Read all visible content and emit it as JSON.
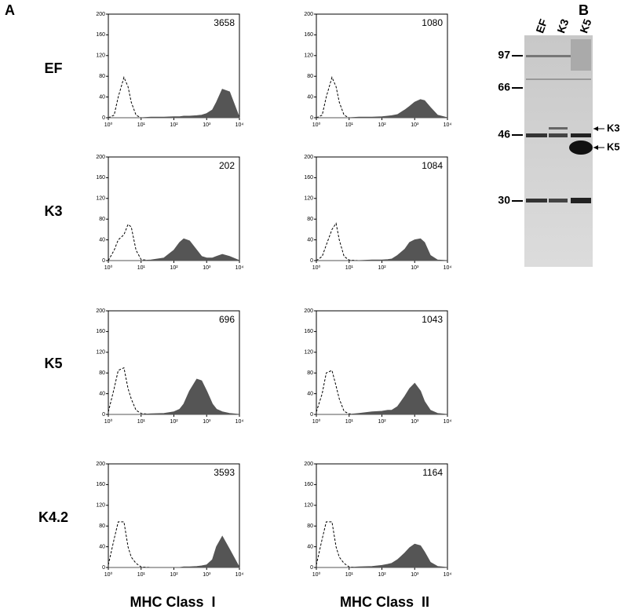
{
  "panel_labels": [
    "A",
    "B"
  ],
  "row_labels": [
    "EF",
    "K3",
    "K5",
    "K4.2"
  ],
  "column_labels": [
    "MHC Class  I",
    "MHC Class  II"
  ],
  "gel": {
    "lanes": [
      "EF",
      "K3",
      "K5"
    ],
    "markers": [
      97,
      66,
      46,
      30
    ],
    "arrows": [
      "K3",
      "K5"
    ]
  },
  "chart_data": [
    {
      "type": "area",
      "annotation": "3658",
      "xscale": "log",
      "xlim": [
        1,
        10000
      ],
      "ylim": [
        0,
        200
      ],
      "xticks": [
        {
          "value": 1,
          "label": "10⁰"
        },
        {
          "value": 10,
          "label": "10¹"
        },
        {
          "value": 100,
          "label": "10²"
        },
        {
          "value": 1000,
          "label": "10³"
        },
        {
          "value": 10000,
          "label": "10⁴"
        }
      ],
      "yticks": [
        0,
        40,
        80,
        120,
        160,
        200
      ],
      "x": [
        1,
        1.5,
        2,
        3,
        4,
        5,
        7,
        10,
        20,
        50,
        100,
        150,
        200,
        300,
        500,
        700,
        1000,
        1500,
        2000,
        3000,
        5000,
        10000
      ],
      "series": [
        {
          "style": "dashed",
          "color": "#000000",
          "values": [
            0,
            5,
            40,
            78,
            60,
            30,
            5,
            0,
            0,
            0,
            0,
            0,
            0,
            0,
            0,
            0,
            0,
            0,
            0,
            0,
            0,
            0
          ]
        },
        {
          "style": "filled",
          "color": "#555555",
          "values": [
            0,
            0,
            0,
            0,
            0,
            0,
            0,
            0,
            1,
            1,
            2,
            2,
            3,
            3,
            4,
            5,
            8,
            15,
            30,
            55,
            50,
            0
          ]
        }
      ]
    },
    {
      "type": "area",
      "annotation": "1080",
      "xscale": "log",
      "xlim": [
        1,
        10000
      ],
      "ylim": [
        0,
        200
      ],
      "xticks": [
        {
          "value": 1,
          "label": "10⁰"
        },
        {
          "value": 10,
          "label": "10¹"
        },
        {
          "value": 100,
          "label": "10²"
        },
        {
          "value": 1000,
          "label": "10³"
        },
        {
          "value": 10000,
          "label": "10⁴"
        }
      ],
      "yticks": [
        0,
        40,
        80,
        120,
        160,
        200
      ],
      "x": [
        1,
        1.5,
        2,
        3,
        4,
        5,
        7,
        10,
        20,
        50,
        100,
        150,
        200,
        300,
        500,
        700,
        1000,
        1500,
        2000,
        3000,
        5000,
        10000
      ],
      "series": [
        {
          "style": "dashed",
          "color": "#000000",
          "values": [
            0,
            5,
            40,
            78,
            60,
            30,
            5,
            0,
            0,
            0,
            0,
            0,
            0,
            0,
            0,
            0,
            0,
            0,
            0,
            0,
            0,
            0
          ]
        },
        {
          "style": "filled",
          "color": "#555555",
          "values": [
            0,
            0,
            0,
            0,
            0,
            0,
            0,
            0,
            1,
            1,
            2,
            3,
            4,
            6,
            15,
            22,
            30,
            35,
            33,
            20,
            5,
            0
          ]
        }
      ]
    },
    {
      "type": "area",
      "annotation": "202",
      "xscale": "log",
      "xlim": [
        1,
        10000
      ],
      "ylim": [
        0,
        200
      ],
      "xticks": [
        {
          "value": 1,
          "label": "10⁰"
        },
        {
          "value": 10,
          "label": "10¹"
        },
        {
          "value": 100,
          "label": "10²"
        },
        {
          "value": 1000,
          "label": "10³"
        },
        {
          "value": 10000,
          "label": "10⁴"
        }
      ],
      "yticks": [
        0,
        40,
        80,
        120,
        160,
        200
      ],
      "x": [
        1,
        1.5,
        2,
        3,
        4,
        5,
        7,
        10,
        20,
        50,
        100,
        150,
        200,
        300,
        500,
        700,
        1000,
        1500,
        2000,
        3000,
        5000,
        10000
      ],
      "series": [
        {
          "style": "dashed",
          "color": "#000000",
          "values": [
            0,
            20,
            40,
            50,
            70,
            65,
            20,
            2,
            0,
            0,
            0,
            0,
            0,
            0,
            0,
            0,
            0,
            0,
            0,
            0,
            0,
            0
          ]
        },
        {
          "style": "filled",
          "color": "#555555",
          "values": [
            0,
            0,
            0,
            0,
            0,
            0,
            0,
            0,
            1,
            5,
            20,
            35,
            42,
            38,
            20,
            8,
            5,
            5,
            8,
            12,
            8,
            0
          ]
        }
      ]
    },
    {
      "type": "area",
      "annotation": "1084",
      "xscale": "log",
      "xlim": [
        1,
        10000
      ],
      "ylim": [
        0,
        200
      ],
      "xticks": [
        {
          "value": 1,
          "label": "10⁰"
        },
        {
          "value": 10,
          "label": "10¹"
        },
        {
          "value": 100,
          "label": "10²"
        },
        {
          "value": 1000,
          "label": "10³"
        },
        {
          "value": 10000,
          "label": "10⁴"
        }
      ],
      "yticks": [
        0,
        40,
        80,
        120,
        160,
        200
      ],
      "x": [
        1,
        1.5,
        2,
        3,
        4,
        5,
        7,
        10,
        20,
        50,
        100,
        150,
        200,
        300,
        500,
        700,
        1000,
        1500,
        2000,
        3000,
        5000,
        10000
      ],
      "series": [
        {
          "style": "dashed",
          "color": "#000000",
          "values": [
            0,
            8,
            30,
            60,
            72,
            40,
            8,
            1,
            0,
            0,
            0,
            0,
            0,
            0,
            0,
            0,
            0,
            0,
            0,
            0,
            0,
            0
          ]
        },
        {
          "style": "filled",
          "color": "#555555",
          "values": [
            0,
            0,
            0,
            0,
            0,
            0,
            0,
            0,
            0,
            1,
            1,
            2,
            3,
            10,
            22,
            35,
            40,
            42,
            35,
            10,
            1,
            0
          ]
        }
      ]
    },
    {
      "type": "area",
      "annotation": "696",
      "xscale": "log",
      "xlim": [
        1,
        10000
      ],
      "ylim": [
        0,
        200
      ],
      "xticks": [
        {
          "value": 1,
          "label": "10⁰"
        },
        {
          "value": 10,
          "label": "10¹"
        },
        {
          "value": 100,
          "label": "10²"
        },
        {
          "value": 1000,
          "label": "10³"
        },
        {
          "value": 10000,
          "label": "10⁴"
        }
      ],
      "yticks": [
        0,
        40,
        80,
        120,
        160,
        200
      ],
      "x": [
        1,
        1.5,
        2,
        3,
        4,
        5,
        7,
        10,
        20,
        50,
        100,
        150,
        200,
        300,
        500,
        700,
        1000,
        1500,
        2000,
        3000,
        5000,
        10000
      ],
      "series": [
        {
          "style": "dashed",
          "color": "#000000",
          "values": [
            5,
            50,
            85,
            90,
            50,
            30,
            8,
            2,
            0,
            0,
            0,
            0,
            0,
            0,
            0,
            0,
            0,
            0,
            0,
            0,
            0,
            0
          ]
        },
        {
          "style": "filled",
          "color": "#555555",
          "values": [
            0,
            0,
            0,
            0,
            0,
            0,
            0,
            0,
            1,
            2,
            5,
            10,
            20,
            45,
            68,
            65,
            45,
            20,
            10,
            5,
            2,
            0
          ]
        }
      ]
    },
    {
      "type": "area",
      "annotation": "1043",
      "xscale": "log",
      "xlim": [
        1,
        10000
      ],
      "ylim": [
        0,
        200
      ],
      "xticks": [
        {
          "value": 1,
          "label": "10⁰"
        },
        {
          "value": 10,
          "label": "10¹"
        },
        {
          "value": 100,
          "label": "10²"
        },
        {
          "value": 1000,
          "label": "10³"
        },
        {
          "value": 10000,
          "label": "10⁴"
        }
      ],
      "yticks": [
        0,
        40,
        80,
        120,
        160,
        200
      ],
      "x": [
        1,
        1.5,
        2,
        3,
        4,
        5,
        7,
        10,
        20,
        50,
        100,
        150,
        200,
        300,
        500,
        700,
        1000,
        1500,
        2000,
        3000,
        5000,
        10000
      ],
      "series": [
        {
          "style": "dashed",
          "color": "#000000",
          "values": [
            5,
            40,
            80,
            85,
            55,
            30,
            6,
            1,
            0,
            0,
            0,
            0,
            0,
            0,
            0,
            0,
            0,
            0,
            0,
            0,
            0,
            0
          ]
        },
        {
          "style": "filled",
          "color": "#555555",
          "values": [
            0,
            0,
            0,
            0,
            0,
            0,
            0,
            0,
            2,
            5,
            6,
            8,
            8,
            15,
            35,
            50,
            60,
            45,
            25,
            8,
            2,
            0
          ]
        }
      ]
    },
    {
      "type": "area",
      "annotation": "3593",
      "xscale": "log",
      "xlim": [
        1,
        10000
      ],
      "ylim": [
        0,
        200
      ],
      "xticks": [
        {
          "value": 1,
          "label": "10⁰"
        },
        {
          "value": 10,
          "label": "10¹"
        },
        {
          "value": 100,
          "label": "10²"
        },
        {
          "value": 1000,
          "label": "10³"
        },
        {
          "value": 10000,
          "label": "10⁴"
        }
      ],
      "yticks": [
        0,
        40,
        80,
        120,
        160,
        200
      ],
      "x": [
        1,
        1.5,
        2,
        3,
        4,
        5,
        7,
        10,
        20,
        50,
        100,
        150,
        200,
        300,
        500,
        700,
        1000,
        1500,
        2000,
        3000,
        5000,
        10000
      ],
      "series": [
        {
          "style": "dashed",
          "color": "#000000",
          "values": [
            5,
            55,
            88,
            88,
            40,
            20,
            8,
            1,
            0,
            0,
            0,
            0,
            0,
            0,
            0,
            0,
            0,
            0,
            0,
            0,
            0,
            0
          ]
        },
        {
          "style": "filled",
          "color": "#555555",
          "values": [
            0,
            0,
            0,
            0,
            0,
            0,
            0,
            0,
            0,
            0,
            0,
            0,
            1,
            1,
            2,
            3,
            5,
            15,
            40,
            60,
            35,
            0
          ]
        }
      ]
    },
    {
      "type": "area",
      "annotation": "1164",
      "xscale": "log",
      "xlim": [
        1,
        10000
      ],
      "ylim": [
        0,
        200
      ],
      "xticks": [
        {
          "value": 1,
          "label": "10⁰"
        },
        {
          "value": 10,
          "label": "10¹"
        },
        {
          "value": 100,
          "label": "10²"
        },
        {
          "value": 1000,
          "label": "10³"
        },
        {
          "value": 10000,
          "label": "10⁴"
        }
      ],
      "yticks": [
        0,
        40,
        80,
        120,
        160,
        200
      ],
      "x": [
        1,
        1.5,
        2,
        3,
        4,
        5,
        7,
        10,
        20,
        50,
        100,
        150,
        200,
        300,
        500,
        700,
        1000,
        1500,
        2000,
        3000,
        5000,
        10000
      ],
      "series": [
        {
          "style": "dashed",
          "color": "#000000",
          "values": [
            5,
            55,
            88,
            88,
            40,
            20,
            8,
            1,
            0,
            0,
            0,
            0,
            0,
            0,
            0,
            0,
            0,
            0,
            0,
            0,
            0,
            0
          ]
        },
        {
          "style": "filled",
          "color": "#555555",
          "values": [
            0,
            0,
            0,
            0,
            0,
            0,
            0,
            0,
            1,
            2,
            4,
            6,
            8,
            15,
            28,
            38,
            45,
            42,
            30,
            10,
            2,
            0
          ]
        }
      ]
    }
  ]
}
